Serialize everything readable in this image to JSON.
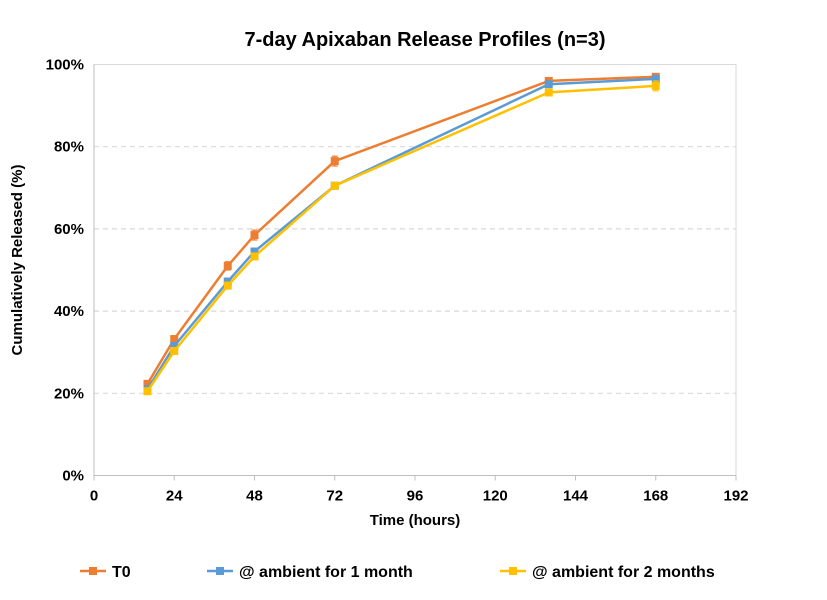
{
  "chart_data": {
    "type": "line",
    "title": "7-day Apixaban Release Profiles (n=3)",
    "xlabel": "Time (hours)",
    "ylabel": "Cumulatively Released (%)",
    "xlim": [
      0,
      192
    ],
    "ylim": [
      0,
      100
    ],
    "xticks": [
      0,
      24,
      48,
      72,
      96,
      120,
      144,
      168,
      192
    ],
    "yticks": [
      0,
      20,
      40,
      60,
      80,
      100
    ],
    "ytick_labels": [
      "0%",
      "20%",
      "40%",
      "60%",
      "80%",
      "100%"
    ],
    "xtick_labels": [
      "0",
      "24",
      "48",
      "72",
      "96",
      "120",
      "144",
      "168",
      "192"
    ],
    "grid": "horizontal dashed",
    "legend_position": "bottom",
    "series": [
      {
        "name": "T0",
        "color": "#ED7D31",
        "marker": "square",
        "x": [
          16,
          24,
          40,
          48,
          72,
          136,
          168
        ],
        "y": [
          22.3,
          33.2,
          51.0,
          58.5,
          76.5,
          96.0,
          97.0
        ],
        "err": [
          0.8,
          0.8,
          1.0,
          1.2,
          1.2,
          0.6,
          0.6
        ]
      },
      {
        "name": "@ ambient for 1 month",
        "color": "#5B9BD5",
        "marker": "square",
        "x": [
          16,
          24,
          40,
          48,
          72,
          136,
          168
        ],
        "y": [
          21.0,
          31.5,
          47.2,
          54.5,
          70.5,
          95.2,
          96.5
        ],
        "err": [
          0.6,
          0.6,
          0.8,
          0.8,
          0.6,
          0.6,
          0.6
        ]
      },
      {
        "name": "@ ambient for 2 months",
        "color": "#FFC000",
        "marker": "square",
        "x": [
          16,
          24,
          40,
          48,
          72,
          136,
          168
        ],
        "y": [
          20.5,
          30.3,
          46.2,
          53.3,
          70.5,
          93.2,
          94.8
        ],
        "err": [
          0.6,
          0.6,
          0.8,
          0.8,
          0.6,
          0.8,
          1.2
        ]
      }
    ]
  }
}
